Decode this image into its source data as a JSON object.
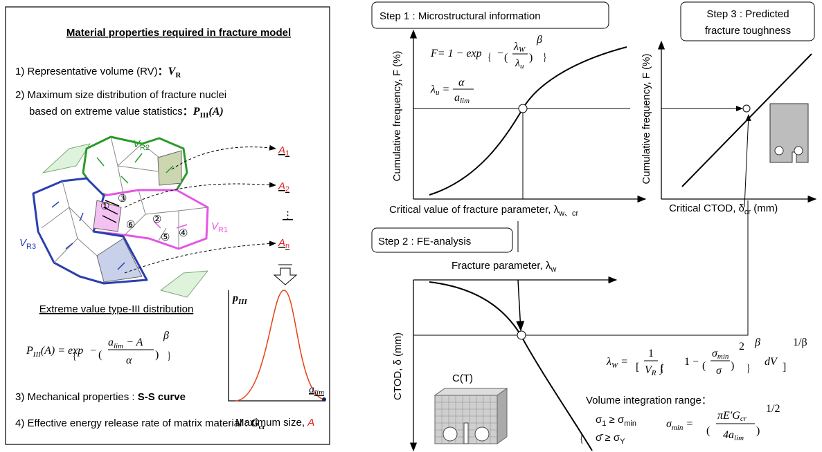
{
  "left_panel": {
    "title": "Material properties required in fracture model",
    "items": [
      [
        "1) Representative volume (RV)",
        "：",
        "V",
        "R"
      ],
      [
        "2) Maximum size distribution of fracture nuclei",
        "based on extreme value statistics",
        "：",
        "P",
        "III",
        "(A)"
      ],
      [
        "3) Mechanical properties : ",
        "S-S curve"
      ],
      [
        "4) Effective energy release rate of matrix material : ",
        "G",
        "cr"
      ]
    ],
    "grains": {
      "v_labels": [
        [
          "V",
          "R2"
        ],
        [
          "V",
          "R1"
        ],
        [
          "V",
          "R3"
        ]
      ],
      "nuclei": [
        "①",
        "②",
        "③",
        "④",
        "⑤",
        "⑥"
      ],
      "a_labels": [
        [
          "A",
          "1"
        ],
        [
          "A",
          "2"
        ],
        [
          "⋮"
        ],
        [
          "A",
          "n"
        ]
      ]
    },
    "distribution": {
      "title": "Extreme value type-III distribution",
      "equation": [
        "P",
        "III",
        "(A) = exp",
        "{",
        "−",
        "(",
        "a",
        "lim",
        " − A",
        "α",
        ")",
        "β",
        "}"
      ],
      "y_label": [
        "p",
        "III"
      ],
      "x_marker": [
        "a",
        "lim"
      ],
      "x_label": [
        "Maximum size, ",
        "A"
      ]
    }
  },
  "right_panel": {
    "step1": "Step 1 : Microstructural information",
    "step2": "Step 2 : FE-analysis",
    "step3": [
      "Step 3 : Predicted",
      "fracture toughness"
    ],
    "cum_freq_label": "Cumulative frequency, F (%)",
    "x_label_1": [
      "Critical value of fracture parameter, λ",
      "w、cr"
    ],
    "x_label_2": [
      "Critical CTOD, δ",
      "cr",
      " (mm)"
    ],
    "x_label_3": [
      "Fracture parameter, λ",
      "w"
    ],
    "y_label_3": "CTOD, δ (mm)",
    "specimen": "C(T)",
    "range_title": "Volume integration range：",
    "eq_F": [
      "F",
      "= 1 − exp",
      "{",
      "−",
      "(",
      "λ",
      "W",
      "λ",
      "u",
      ")",
      "β",
      "}"
    ],
    "eq_lambda_u": [
      "λ",
      "u",
      "=",
      "α",
      "a",
      "lim"
    ],
    "eq_lambda_W": [
      "λ",
      "W",
      "=",
      "[",
      "1",
      "V",
      "R",
      "∫",
      "{",
      "1 −",
      "(",
      "σ",
      "min",
      "σ",
      ")",
      "2",
      "}",
      "β",
      "dV",
      "]",
      "1/β"
    ],
    "eq_range": [
      "{",
      "σ",
      "1",
      " ≥ σ",
      "min",
      "σ̄ ≥ σ",
      "Y"
    ],
    "eq_sigma_min": [
      "σ",
      "min",
      "=",
      "(",
      "πE′G",
      "cr",
      "4a",
      "lim",
      ")",
      "1/2"
    ]
  }
}
